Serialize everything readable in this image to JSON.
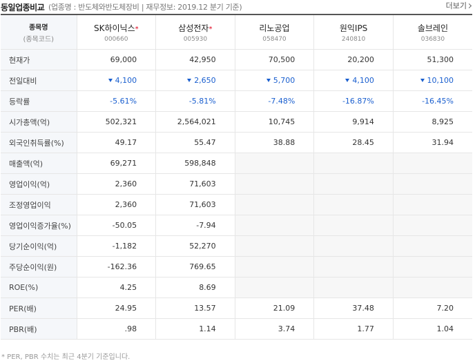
{
  "header": {
    "title": "동일업종비교",
    "subinfo": "(업종명 : 반도체와반도체장비 | 재무정보: 2019.12 분기 기준)",
    "more_label": "더보기"
  },
  "table": {
    "corner_label": "종목명",
    "corner_sub": "(종목코드)",
    "companies": [
      {
        "name": "SK하이닉스",
        "code": "000660",
        "starred": true
      },
      {
        "name": "삼성전자",
        "code": "005930",
        "starred": true
      },
      {
        "name": "리노공업",
        "code": "058470",
        "starred": false
      },
      {
        "name": "원익IPS",
        "code": "240810",
        "starred": false
      },
      {
        "name": "솔브레인",
        "code": "036830",
        "starred": false
      }
    ],
    "star_symbol": "*",
    "rows": [
      {
        "label": "현재가",
        "type": "plain",
        "values": [
          "69,000",
          "42,950",
          "70,500",
          "20,200",
          "51,300"
        ]
      },
      {
        "label": "전일대비",
        "type": "change",
        "values": [
          "4,100",
          "2,650",
          "5,700",
          "4,100",
          "10,100"
        ]
      },
      {
        "label": "등락률",
        "type": "rate",
        "values": [
          "-5.61%",
          "-5.81%",
          "-7.48%",
          "-16.87%",
          "-16.45%"
        ]
      },
      {
        "label": "시가총액(억)",
        "type": "plain",
        "values": [
          "502,321",
          "2,564,021",
          "10,745",
          "9,914",
          "8,925"
        ]
      },
      {
        "label": "외국인취득률(%)",
        "type": "plain",
        "values": [
          "49.17",
          "55.47",
          "38.88",
          "28.45",
          "31.94"
        ]
      },
      {
        "label": "매출액(억)",
        "type": "plain",
        "values": [
          "69,271",
          "598,848",
          "",
          "",
          ""
        ]
      },
      {
        "label": "영업이익(억)",
        "type": "plain",
        "values": [
          "2,360",
          "71,603",
          "",
          "",
          ""
        ]
      },
      {
        "label": "조정영업이익",
        "type": "plain",
        "values": [
          "2,360",
          "71,603",
          "",
          "",
          ""
        ]
      },
      {
        "label": "영업이익증가율(%)",
        "type": "plain",
        "values": [
          "-50.05",
          "-7.94",
          "",
          "",
          ""
        ]
      },
      {
        "label": "당기순이익(억)",
        "type": "plain",
        "values": [
          "-1,182",
          "52,270",
          "",
          "",
          ""
        ]
      },
      {
        "label": "주당순이익(원)",
        "type": "plain",
        "values": [
          "-162.36",
          "769.65",
          "",
          "",
          ""
        ]
      },
      {
        "label": "ROE(%)",
        "type": "plain",
        "values": [
          "4.25",
          "8.69",
          "",
          "",
          ""
        ]
      },
      {
        "label": "PER(배)",
        "type": "plain",
        "values": [
          "24.95",
          "13.57",
          "21.09",
          "37.48",
          "7.20"
        ]
      },
      {
        "label": "PBR(배)",
        "type": "plain",
        "values": [
          ".98",
          "1.14",
          "3.74",
          "1.77",
          "1.04"
        ]
      }
    ]
  },
  "footnote": "* PER, PBR 수치는 최근 4분기 기준입니다.",
  "colors": {
    "down": "#1a5fcf",
    "star": "#e0001b"
  }
}
